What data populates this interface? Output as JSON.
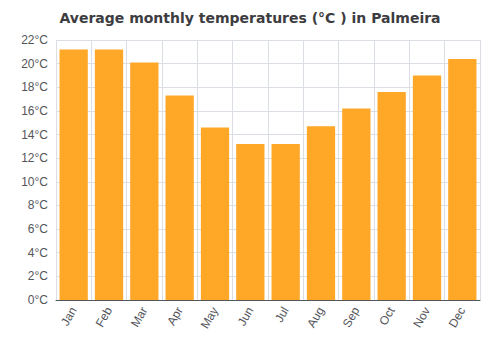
{
  "chart_data": {
    "type": "bar",
    "title": "Average monthly temperatures (°C ) in Palmeira",
    "categories": [
      "Jan",
      "Feb",
      "Mar",
      "Apr",
      "May",
      "Jun",
      "Jul",
      "Aug",
      "Sep",
      "Oct",
      "Nov",
      "Dec"
    ],
    "values": [
      21.2,
      21.2,
      20.1,
      17.3,
      14.6,
      13.2,
      13.2,
      14.7,
      16.2,
      17.6,
      19.0,
      20.4
    ],
    "color": "#FFA726",
    "ylim": [
      0,
      22
    ],
    "yticks": [
      {
        "value": 0,
        "label": "0°C"
      },
      {
        "value": 2,
        "label": "2°C"
      },
      {
        "value": 4,
        "label": "4°C"
      },
      {
        "value": 6,
        "label": "6°C"
      },
      {
        "value": 8,
        "label": "8°C"
      },
      {
        "value": 10,
        "label": "10°C"
      },
      {
        "value": 12,
        "label": "12°C"
      },
      {
        "value": 14,
        "label": "14°C"
      },
      {
        "value": 16,
        "label": "16°C"
      },
      {
        "value": 18,
        "label": "18°C"
      },
      {
        "value": 20,
        "label": "20°C"
      },
      {
        "value": 22,
        "label": "22°C"
      }
    ],
    "grid": true
  }
}
